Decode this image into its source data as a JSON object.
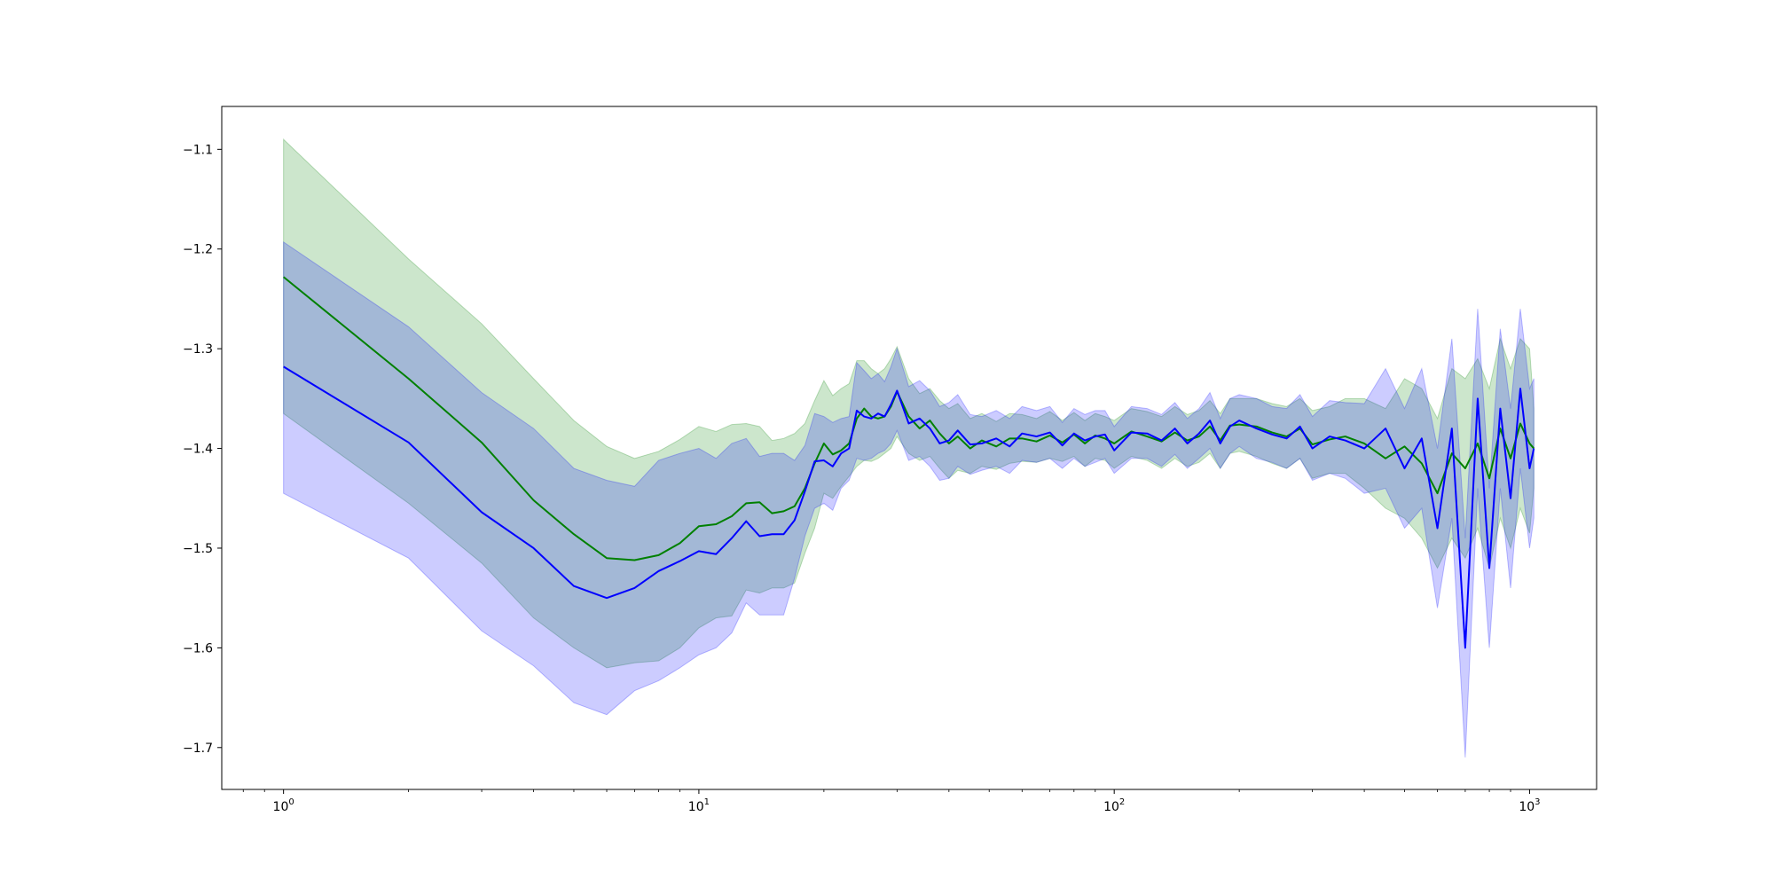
{
  "chart_data": {
    "type": "line",
    "title": "",
    "xlabel": "",
    "ylabel": "",
    "xscale": "log",
    "xlim": [
      0.71,
      1450
    ],
    "ylim": [
      -1.742,
      -1.057
    ],
    "grid": false,
    "legend": "none",
    "x_ticks": [
      {
        "value": 1,
        "base": "10",
        "exp": "0"
      },
      {
        "value": 10,
        "base": "10",
        "exp": "1"
      },
      {
        "value": 100,
        "base": "10",
        "exp": "2"
      },
      {
        "value": 1000,
        "base": "10",
        "exp": "3"
      }
    ],
    "y_ticks": [
      {
        "value": -1.1,
        "label": "−1.1"
      },
      {
        "value": -1.2,
        "label": "−1.2"
      },
      {
        "value": -1.3,
        "label": "−1.3"
      },
      {
        "value": -1.4,
        "label": "−1.4"
      },
      {
        "value": -1.5,
        "label": "−1.5"
      },
      {
        "value": -1.6,
        "label": "−1.6"
      },
      {
        "value": -1.7,
        "label": "−1.7"
      }
    ],
    "series": [
      {
        "color": "#008000",
        "band_color": "#008000",
        "band_opacity": 0.2,
        "x": [
          1,
          2,
          3,
          4,
          5,
          6,
          7,
          8,
          9,
          10,
          11,
          12,
          13,
          14,
          15,
          16,
          17,
          18,
          19,
          20,
          21,
          22,
          23,
          24,
          25,
          26,
          27,
          28,
          29,
          30,
          32,
          34,
          36,
          38,
          40,
          42,
          45,
          48,
          52,
          56,
          60,
          65,
          70,
          75,
          80,
          85,
          90,
          95,
          100,
          110,
          120,
          130,
          140,
          150,
          160,
          170,
          180,
          190,
          200,
          220,
          240,
          260,
          280,
          300,
          330,
          360,
          400,
          450,
          500,
          550,
          600,
          650,
          700,
          750,
          800,
          850,
          900,
          950,
          1000,
          1024
        ],
        "y": [
          -1.228,
          -1.33,
          -1.394,
          -1.452,
          -1.486,
          -1.51,
          -1.512,
          -1.507,
          -1.495,
          -1.478,
          -1.476,
          -1.468,
          -1.455,
          -1.454,
          -1.465,
          -1.463,
          -1.458,
          -1.44,
          -1.415,
          -1.395,
          -1.406,
          -1.402,
          -1.395,
          -1.37,
          -1.36,
          -1.368,
          -1.37,
          -1.368,
          -1.358,
          -1.343,
          -1.368,
          -1.38,
          -1.372,
          -1.385,
          -1.395,
          -1.388,
          -1.4,
          -1.392,
          -1.398,
          -1.39,
          -1.39,
          -1.393,
          -1.387,
          -1.394,
          -1.386,
          -1.395,
          -1.387,
          -1.39,
          -1.395,
          -1.383,
          -1.388,
          -1.393,
          -1.384,
          -1.392,
          -1.388,
          -1.378,
          -1.392,
          -1.377,
          -1.376,
          -1.378,
          -1.384,
          -1.388,
          -1.38,
          -1.396,
          -1.391,
          -1.388,
          -1.395,
          -1.41,
          -1.398,
          -1.415,
          -1.445,
          -1.405,
          -1.42,
          -1.395,
          -1.43,
          -1.38,
          -1.41,
          -1.375,
          -1.395,
          -1.4
        ],
        "lower": [
          -1.365,
          -1.455,
          -1.515,
          -1.57,
          -1.6,
          -1.62,
          -1.615,
          -1.613,
          -1.6,
          -1.58,
          -1.57,
          -1.568,
          -1.542,
          -1.545,
          -1.54,
          -1.54,
          -1.535,
          -1.505,
          -1.48,
          -1.445,
          -1.45,
          -1.438,
          -1.428,
          -1.418,
          -1.412,
          -1.413,
          -1.41,
          -1.405,
          -1.4,
          -1.388,
          -1.405,
          -1.412,
          -1.408,
          -1.42,
          -1.43,
          -1.422,
          -1.425,
          -1.418,
          -1.421,
          -1.415,
          -1.413,
          -1.414,
          -1.41,
          -1.413,
          -1.408,
          -1.418,
          -1.41,
          -1.412,
          -1.42,
          -1.408,
          -1.412,
          -1.42,
          -1.41,
          -1.418,
          -1.414,
          -1.405,
          -1.42,
          -1.405,
          -1.403,
          -1.408,
          -1.415,
          -1.42,
          -1.41,
          -1.43,
          -1.425,
          -1.425,
          -1.44,
          -1.46,
          -1.47,
          -1.49,
          -1.52,
          -1.49,
          -1.51,
          -1.48,
          -1.52,
          -1.47,
          -1.5,
          -1.46,
          -1.485,
          -1.44
        ],
        "upper": [
          -1.09,
          -1.21,
          -1.275,
          -1.33,
          -1.372,
          -1.398,
          -1.41,
          -1.403,
          -1.391,
          -1.378,
          -1.383,
          -1.376,
          -1.375,
          -1.378,
          -1.392,
          -1.39,
          -1.385,
          -1.375,
          -1.352,
          -1.332,
          -1.347,
          -1.34,
          -1.335,
          -1.312,
          -1.312,
          -1.32,
          -1.325,
          -1.32,
          -1.31,
          -1.298,
          -1.33,
          -1.345,
          -1.34,
          -1.352,
          -1.36,
          -1.355,
          -1.37,
          -1.365,
          -1.373,
          -1.365,
          -1.366,
          -1.37,
          -1.363,
          -1.372,
          -1.364,
          -1.372,
          -1.365,
          -1.368,
          -1.372,
          -1.36,
          -1.363,
          -1.368,
          -1.358,
          -1.366,
          -1.362,
          -1.352,
          -1.365,
          -1.35,
          -1.35,
          -1.35,
          -1.355,
          -1.358,
          -1.35,
          -1.362,
          -1.358,
          -1.35,
          -1.35,
          -1.36,
          -1.33,
          -1.34,
          -1.37,
          -1.32,
          -1.33,
          -1.31,
          -1.34,
          -1.29,
          -1.32,
          -1.29,
          -1.3,
          -1.36
        ]
      },
      {
        "color": "#0000ff",
        "band_color": "#0000ff",
        "band_opacity": 0.2,
        "x": [
          1,
          2,
          3,
          4,
          5,
          6,
          7,
          8,
          9,
          10,
          11,
          12,
          13,
          14,
          15,
          16,
          17,
          18,
          19,
          20,
          21,
          22,
          23,
          24,
          25,
          26,
          27,
          28,
          29,
          30,
          32,
          34,
          36,
          38,
          40,
          42,
          45,
          48,
          52,
          56,
          60,
          65,
          70,
          75,
          80,
          85,
          90,
          95,
          100,
          110,
          120,
          130,
          140,
          150,
          160,
          170,
          180,
          190,
          200,
          220,
          240,
          260,
          280,
          300,
          330,
          360,
          400,
          450,
          500,
          550,
          600,
          650,
          700,
          750,
          800,
          850,
          900,
          950,
          1000,
          1024
        ],
        "y": [
          -1.318,
          -1.394,
          -1.464,
          -1.5,
          -1.538,
          -1.55,
          -1.54,
          -1.523,
          -1.513,
          -1.503,
          -1.506,
          -1.49,
          -1.473,
          -1.488,
          -1.486,
          -1.486,
          -1.472,
          -1.443,
          -1.413,
          -1.412,
          -1.418,
          -1.405,
          -1.4,
          -1.362,
          -1.368,
          -1.37,
          -1.365,
          -1.368,
          -1.356,
          -1.342,
          -1.375,
          -1.37,
          -1.38,
          -1.395,
          -1.392,
          -1.382,
          -1.396,
          -1.395,
          -1.39,
          -1.398,
          -1.385,
          -1.388,
          -1.384,
          -1.397,
          -1.385,
          -1.392,
          -1.388,
          -1.386,
          -1.402,
          -1.384,
          -1.385,
          -1.392,
          -1.38,
          -1.395,
          -1.385,
          -1.372,
          -1.395,
          -1.378,
          -1.372,
          -1.38,
          -1.386,
          -1.39,
          -1.378,
          -1.4,
          -1.388,
          -1.392,
          -1.4,
          -1.38,
          -1.42,
          -1.39,
          -1.48,
          -1.38,
          -1.6,
          -1.35,
          -1.52,
          -1.36,
          -1.45,
          -1.34,
          -1.42,
          -1.4
        ],
        "lower": [
          -1.445,
          -1.51,
          -1.583,
          -1.618,
          -1.655,
          -1.667,
          -1.643,
          -1.633,
          -1.62,
          -1.607,
          -1.6,
          -1.585,
          -1.555,
          -1.567,
          -1.567,
          -1.567,
          -1.53,
          -1.488,
          -1.46,
          -1.455,
          -1.462,
          -1.44,
          -1.432,
          -1.41,
          -1.412,
          -1.41,
          -1.405,
          -1.402,
          -1.395,
          -1.382,
          -1.412,
          -1.408,
          -1.418,
          -1.432,
          -1.43,
          -1.418,
          -1.426,
          -1.422,
          -1.418,
          -1.425,
          -1.412,
          -1.414,
          -1.41,
          -1.42,
          -1.41,
          -1.418,
          -1.414,
          -1.41,
          -1.425,
          -1.41,
          -1.41,
          -1.418,
          -1.406,
          -1.42,
          -1.41,
          -1.4,
          -1.42,
          -1.405,
          -1.398,
          -1.41,
          -1.414,
          -1.42,
          -1.41,
          -1.432,
          -1.425,
          -1.43,
          -1.445,
          -1.44,
          -1.48,
          -1.46,
          -1.56,
          -1.47,
          -1.71,
          -1.44,
          -1.6,
          -1.44,
          -1.54,
          -1.42,
          -1.5,
          -1.47
        ],
        "upper": [
          -1.193,
          -1.278,
          -1.344,
          -1.38,
          -1.42,
          -1.432,
          -1.438,
          -1.412,
          -1.405,
          -1.4,
          -1.41,
          -1.395,
          -1.39,
          -1.408,
          -1.405,
          -1.405,
          -1.412,
          -1.397,
          -1.365,
          -1.368,
          -1.374,
          -1.37,
          -1.368,
          -1.314,
          -1.322,
          -1.33,
          -1.325,
          -1.333,
          -1.318,
          -1.3,
          -1.338,
          -1.332,
          -1.342,
          -1.358,
          -1.354,
          -1.346,
          -1.366,
          -1.368,
          -1.362,
          -1.37,
          -1.358,
          -1.362,
          -1.358,
          -1.374,
          -1.36,
          -1.366,
          -1.362,
          -1.362,
          -1.378,
          -1.358,
          -1.36,
          -1.366,
          -1.354,
          -1.37,
          -1.36,
          -1.344,
          -1.37,
          -1.35,
          -1.346,
          -1.35,
          -1.358,
          -1.36,
          -1.346,
          -1.368,
          -1.352,
          -1.354,
          -1.355,
          -1.32,
          -1.36,
          -1.32,
          -1.4,
          -1.29,
          -1.49,
          -1.26,
          -1.44,
          -1.28,
          -1.36,
          -1.26,
          -1.34,
          -1.33
        ]
      }
    ]
  }
}
